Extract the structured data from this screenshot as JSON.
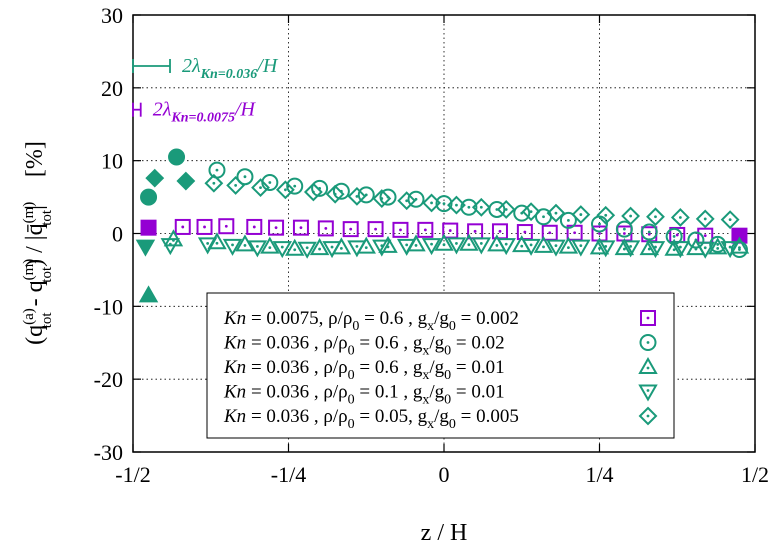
{
  "chart_data": {
    "type": "scatter",
    "xlabel": "z / H",
    "ylabel_parts": {
      "open": "(q",
      "tot": "tot",
      "sup_a": "(a)",
      "minus": " - q",
      "sup_m": "(m)",
      "slash": ") / |q̄",
      "close": "|",
      "unit": "[%]"
    },
    "xlim": [
      -0.5,
      0.5
    ],
    "ylim": [
      -30,
      30
    ],
    "xticks": [
      {
        "value": -0.5,
        "label": "-1/2"
      },
      {
        "value": -0.25,
        "label": "-1/4"
      },
      {
        "value": 0,
        "label": "0"
      },
      {
        "value": 0.25,
        "label": "1/4"
      },
      {
        "value": 0.5,
        "label": "1/2"
      }
    ],
    "yticks": [
      {
        "value": -30,
        "label": "-30"
      },
      {
        "value": -20,
        "label": "-20"
      },
      {
        "value": -10,
        "label": "-10"
      },
      {
        "value": 0,
        "label": "0"
      },
      {
        "value": 10,
        "label": "10"
      },
      {
        "value": 20,
        "label": "20"
      },
      {
        "value": 30,
        "label": "30"
      }
    ],
    "grid": true,
    "legend_placement": "bottom-right",
    "annotations": [
      {
        "text_pre": "2λ",
        "text_sub": "Kn=0.036",
        "text_post": "/H",
        "color": "#1a9a7a",
        "x_start": -0.5,
        "x_end": -0.4405,
        "y": 23
      },
      {
        "text_pre": "2λ",
        "text_sub": "Kn=0.0075",
        "text_post": "/H",
        "color": "#9400d3",
        "x_start": -0.5,
        "x_end": -0.4876,
        "y": 17
      }
    ],
    "series": [
      {
        "name": "Kn = 0.0075, ρ/ρ0 = 0.6  , gx/g0 = 0.002",
        "legend": {
          "kn": "Kn",
          "kn_val": " = 0.0075, ρ/ρ",
          "rho_sub": "0",
          "rho_val": " = 0.6  , g",
          "gx_sub": "x",
          "gx_mid": "/g",
          "g0_sub": "0",
          "g_val": " = 0.002"
        },
        "marker": "square",
        "color": "#9400d3",
        "x": [
          -0.475,
          -0.42,
          -0.385,
          -0.35,
          -0.305,
          -0.27,
          -0.23,
          -0.19,
          -0.15,
          -0.11,
          -0.07,
          -0.03,
          0.01,
          0.05,
          0.09,
          0.13,
          0.17,
          0.21,
          0.25,
          0.29,
          0.33,
          0.375,
          0.42,
          0.475
        ],
        "y": [
          0.8,
          0.9,
          0.9,
          1.0,
          0.9,
          0.8,
          0.8,
          0.7,
          0.6,
          0.6,
          0.5,
          0.5,
          0.4,
          0.3,
          0.3,
          0.2,
          0.1,
          0.1,
          0.0,
          0.0,
          -0.1,
          -0.2,
          -0.3,
          -0.3
        ]
      },
      {
        "name": "Kn = 0.036  , ρ/ρ0 = 0.6  , gx/g0 = 0.02",
        "legend": {
          "kn": "Kn",
          "kn_val": " = 0.036  , ρ/ρ",
          "rho_sub": "0",
          "rho_val": " = 0.6  , g",
          "gx_sub": "x",
          "gx_mid": "/g",
          "g0_sub": "0",
          "g_val": " = 0.02"
        },
        "marker": "circle",
        "color": "#1a9a7a",
        "x": [
          -0.475,
          -0.43,
          -0.365,
          -0.32,
          -0.28,
          -0.24,
          -0.2,
          -0.165,
          -0.125,
          -0.09,
          -0.045,
          0.0,
          0.04,
          0.085,
          0.125,
          0.16,
          0.2,
          0.25,
          0.29,
          0.33,
          0.37,
          0.405,
          0.44,
          0.475
        ],
        "y": [
          5.0,
          10.5,
          8.7,
          7.8,
          7.0,
          6.5,
          6.2,
          5.8,
          5.3,
          5.0,
          4.7,
          4.1,
          3.6,
          3.3,
          2.8,
          2.3,
          1.8,
          1.3,
          0.6,
          0.2,
          -0.4,
          -0.9,
          -1.5,
          -2.2
        ]
      },
      {
        "name": "Kn = 0.036  , ρ/ρ0 = 0.6  , gx/g0 = 0.01",
        "legend": {
          "kn": "Kn",
          "kn_val": " = 0.036  , ρ/ρ",
          "rho_sub": "0",
          "rho_val": " = 0.6  , g",
          "gx_sub": "x",
          "gx_mid": "/g",
          "g0_sub": "0",
          "g_val": " = 0.01"
        },
        "marker": "triangle-up",
        "color": "#1a9a7a",
        "x": [
          -0.475,
          -0.435,
          -0.365,
          -0.32,
          -0.28,
          -0.24,
          -0.2,
          -0.165,
          -0.125,
          -0.09,
          -0.045,
          0.0,
          0.04,
          0.085,
          0.125,
          0.16,
          0.2,
          0.25,
          0.29,
          0.33,
          0.37,
          0.405,
          0.44,
          0.475
        ],
        "y": [
          -8.5,
          -0.8,
          -1.2,
          -1.5,
          -1.8,
          -2.1,
          -2.0,
          -1.9,
          -1.8,
          -1.7,
          -1.5,
          -1.4,
          -1.4,
          -1.5,
          -1.6,
          -1.7,
          -1.8,
          -1.9,
          -2.0,
          -2.0,
          -2.1,
          -2.0,
          -1.9,
          -1.8
        ]
      },
      {
        "name": "Kn = 0.036  , ρ/ρ0 = 0.1  , gx/g0 = 0.01",
        "legend": {
          "kn": "Kn",
          "kn_val": " = 0.036  , ρ/ρ",
          "rho_sub": "0",
          "rho_val": " = 0.1  , g",
          "gx_sub": "x",
          "gx_mid": "/g",
          "g0_sub": "0",
          "g_val": " = 0.01"
        },
        "marker": "triangle-down",
        "color": "#1a9a7a",
        "x": [
          -0.48,
          -0.44,
          -0.38,
          -0.34,
          -0.3,
          -0.26,
          -0.22,
          -0.18,
          -0.14,
          -0.1,
          -0.06,
          -0.02,
          0.02,
          0.06,
          0.1,
          0.14,
          0.18,
          0.22,
          0.26,
          0.3,
          0.34,
          0.38,
          0.42,
          0.46
        ],
        "y": [
          -1.8,
          -1.6,
          -1.5,
          -1.7,
          -1.9,
          -2.0,
          -2.1,
          -2.0,
          -1.9,
          -1.8,
          -1.7,
          -1.6,
          -1.5,
          -1.5,
          -1.6,
          -1.7,
          -1.8,
          -1.8,
          -1.9,
          -1.9,
          -2.0,
          -2.0,
          -2.1,
          -2.0
        ]
      },
      {
        "name": "Kn = 0.036  , ρ/ρ0 = 0.05, gx/g0 = 0.005",
        "legend": {
          "kn": "Kn",
          "kn_val": " = 0.036  , ρ/ρ",
          "rho_sub": "0",
          "rho_val": " = 0.05, g",
          "gx_sub": "x",
          "gx_mid": "/g",
          "g0_sub": "0",
          "g_val": " = 0.005"
        },
        "marker": "diamond",
        "color": "#1a9a7a",
        "x": [
          -0.465,
          -0.415,
          -0.37,
          -0.335,
          -0.295,
          -0.255,
          -0.21,
          -0.175,
          -0.14,
          -0.1,
          -0.06,
          -0.02,
          0.02,
          0.06,
          0.1,
          0.14,
          0.18,
          0.22,
          0.26,
          0.3,
          0.34,
          0.38,
          0.42,
          0.46
        ],
        "y": [
          7.6,
          7.2,
          6.9,
          6.6,
          6.3,
          6.0,
          5.7,
          5.4,
          5.1,
          4.8,
          4.5,
          4.2,
          3.9,
          3.6,
          3.3,
          3.0,
          2.8,
          2.6,
          2.5,
          2.4,
          2.3,
          2.2,
          2.0,
          1.9
        ]
      }
    ]
  }
}
